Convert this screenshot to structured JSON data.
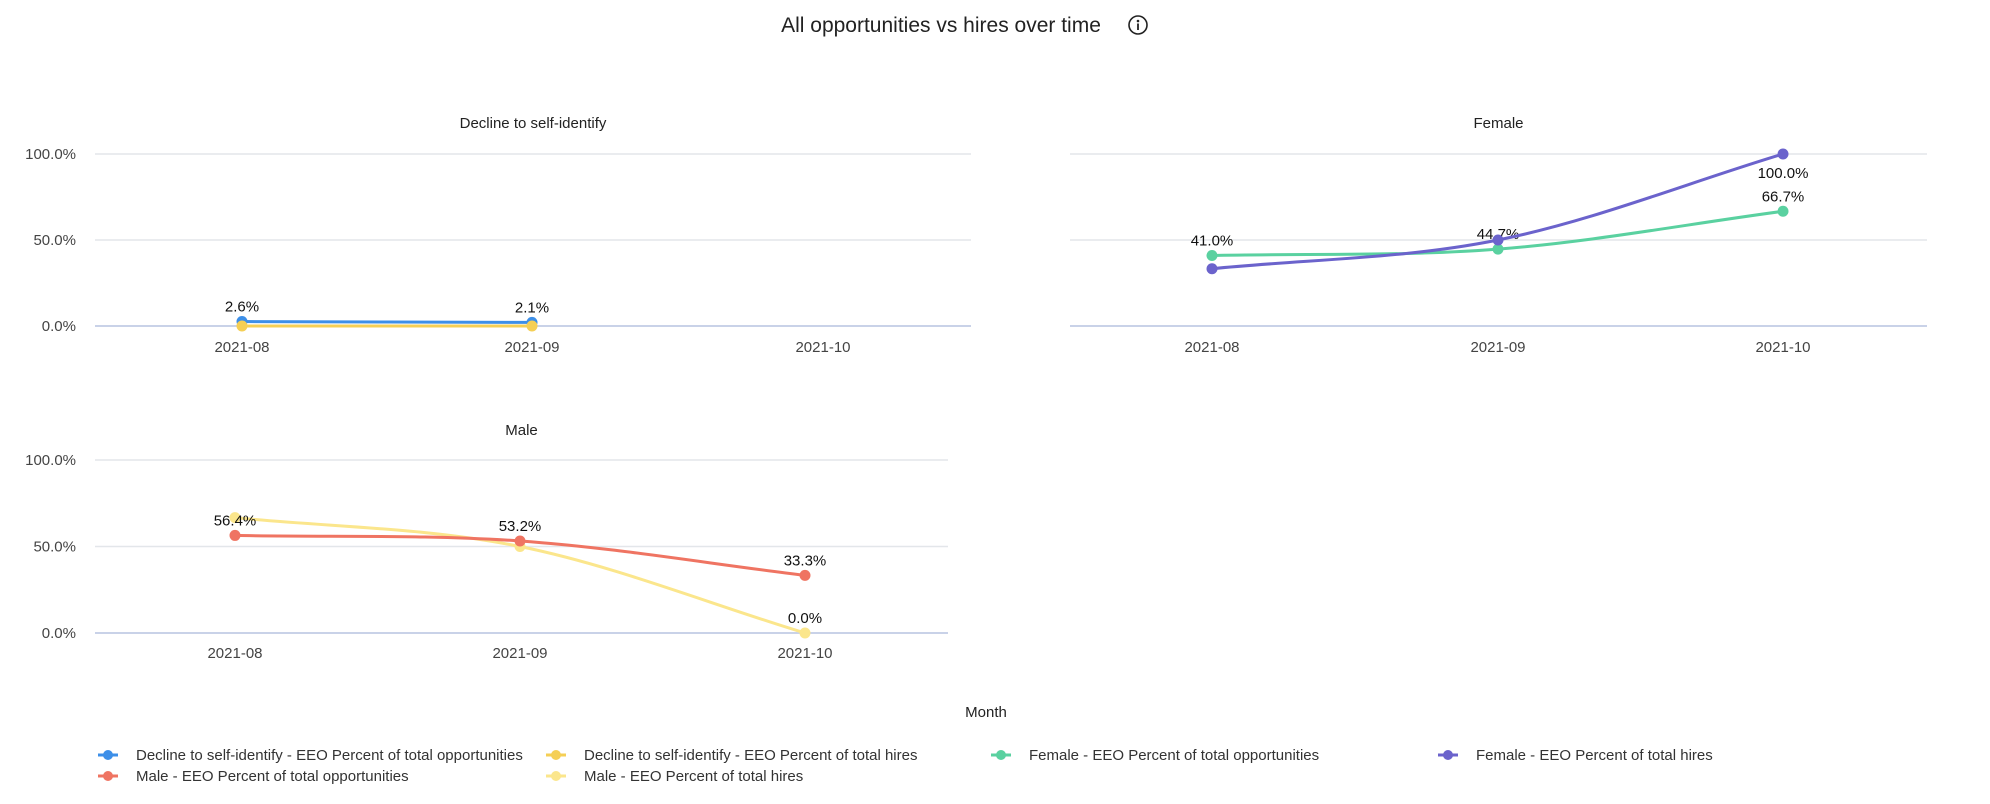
{
  "title": "All opportunities vs hires over time",
  "info_icon": "info-circle-icon",
  "xlabel": "Month",
  "colors": {
    "decline_opps": "#3d8fe8",
    "decline_hires": "#f5cf55",
    "female_opps": "#5ad1a0",
    "female_hires": "#6b63cc",
    "male_opps": "#ef7462",
    "male_hires": "#fbe68c",
    "grid": "#e3e6ea",
    "baseline": "#c9d2e8"
  },
  "legend": [
    {
      "label": "Decline to self-identify - EEO Percent of total opportunities",
      "color": "#3d8fe8"
    },
    {
      "label": "Decline to self-identify - EEO Percent of total hires",
      "color": "#f5cf55"
    },
    {
      "label": "Female - EEO Percent of total opportunities",
      "color": "#5ad1a0"
    },
    {
      "label": "Female - EEO Percent of total hires",
      "color": "#6b63cc"
    },
    {
      "label": "Male - EEO Percent of total opportunities",
      "color": "#ef7462"
    },
    {
      "label": "Male - EEO Percent of total hires",
      "color": "#fbe68c"
    }
  ],
  "chart_data": [
    {
      "type": "line",
      "title": "Decline to self-identify",
      "categories": [
        "2021-08",
        "2021-09",
        "2021-10"
      ],
      "ylim": [
        0,
        100
      ],
      "yticks": [
        "0.0%",
        "50.0%",
        "100.0%"
      ],
      "grid": true,
      "series": [
        {
          "name": "Decline to self-identify - EEO Percent of total opportunities",
          "color": "#3d8fe8",
          "values": [
            2.6,
            2.1,
            null
          ],
          "labels": [
            "2.6%",
            "2.1%",
            null
          ]
        },
        {
          "name": "Decline to self-identify - EEO Percent of total hires",
          "color": "#f5cf55",
          "values": [
            0,
            0,
            null
          ],
          "labels": [
            null,
            null,
            null
          ]
        }
      ]
    },
    {
      "type": "line",
      "title": "Female",
      "categories": [
        "2021-08",
        "2021-09",
        "2021-10"
      ],
      "ylim": [
        0,
        100
      ],
      "yticks": [],
      "grid": true,
      "series": [
        {
          "name": "Female - EEO Percent of total opportunities",
          "color": "#5ad1a0",
          "values": [
            41.0,
            44.7,
            66.7
          ],
          "labels": [
            "41.0%",
            "44.7%",
            "66.7%"
          ]
        },
        {
          "name": "Female - EEO Percent of total hires",
          "color": "#6b63cc",
          "values": [
            33.3,
            50.0,
            100.0
          ],
          "labels": [
            null,
            null,
            "100.0%"
          ]
        }
      ]
    },
    {
      "type": "line",
      "title": "Male",
      "categories": [
        "2021-08",
        "2021-09",
        "2021-10"
      ],
      "ylim": [
        0,
        100
      ],
      "yticks": [
        "0.0%",
        "50.0%",
        "100.0%"
      ],
      "grid": true,
      "series": [
        {
          "name": "Male - EEO Percent of total hires",
          "color": "#fbe68c",
          "values": [
            66.7,
            50.0,
            0.0
          ],
          "labels": [
            null,
            null,
            "0.0%"
          ]
        },
        {
          "name": "Male - EEO Percent of total opportunities",
          "color": "#ef7462",
          "values": [
            56.4,
            53.2,
            33.3
          ],
          "labels": [
            "56.4%",
            "53.2%",
            "33.3%"
          ]
        }
      ]
    }
  ]
}
